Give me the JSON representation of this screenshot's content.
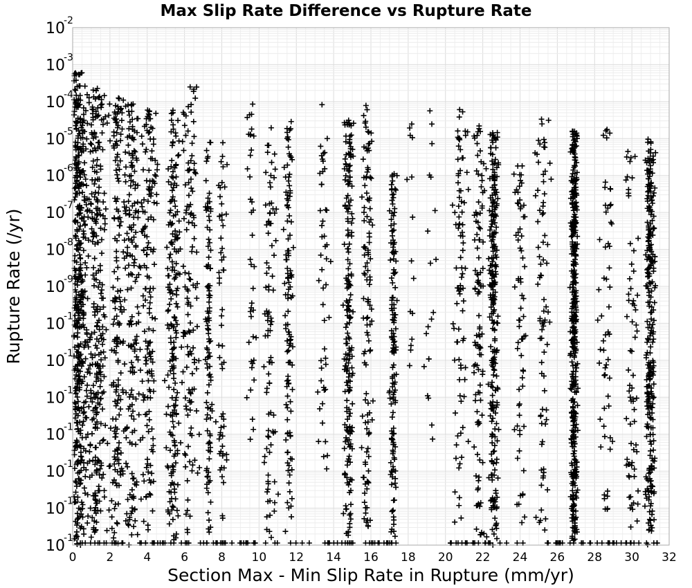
{
  "chart_data": {
    "type": "scatter",
    "title": "Max Slip Rate Difference vs Rupture Rate",
    "xlabel": "Section Max - Min Slip Rate in Rupture (mm/yr)",
    "ylabel": "Rupture Rate (/yr)",
    "xlim": [
      0,
      32
    ],
    "ylim": [
      1e-16,
      0.01
    ],
    "yscale": "log",
    "grid": true,
    "marker": "+",
    "marker_color": "#000000",
    "x_ticks": [
      "0",
      "2",
      "4",
      "6",
      "8",
      "10",
      "12",
      "14",
      "16",
      "18",
      "20",
      "22",
      "24",
      "26",
      "28",
      "30",
      "32"
    ],
    "y_ticks": [
      {
        "base": "10",
        "exp": "-16"
      },
      {
        "base": "10",
        "exp": "-15"
      },
      {
        "base": "10",
        "exp": "-14"
      },
      {
        "base": "10",
        "exp": "-13"
      },
      {
        "base": "10",
        "exp": "-12"
      },
      {
        "base": "10",
        "exp": "-11"
      },
      {
        "base": "10",
        "exp": "-10"
      },
      {
        "base": "10",
        "exp": "-9"
      },
      {
        "base": "10",
        "exp": "-8"
      },
      {
        "base": "10",
        "exp": "-7"
      },
      {
        "base": "10",
        "exp": "-6"
      },
      {
        "base": "10",
        "exp": "-5"
      },
      {
        "base": "10",
        "exp": "-4"
      },
      {
        "base": "10",
        "exp": "-3"
      },
      {
        "base": "10",
        "exp": "-2"
      }
    ],
    "clusters": [
      {
        "x": 0.3,
        "spread": 0.4,
        "y_min": -16,
        "y_max": -3.2,
        "count": 520
      },
      {
        "x": 1.3,
        "spread": 0.45,
        "y_min": -16,
        "y_max": -3.6,
        "count": 300
      },
      {
        "x": 2.4,
        "spread": 0.35,
        "y_min": -16,
        "y_max": -3.8,
        "count": 180
      },
      {
        "x": 3.2,
        "spread": 0.35,
        "y_min": -16,
        "y_max": -4.0,
        "count": 180
      },
      {
        "x": 4.1,
        "spread": 0.35,
        "y_min": -16,
        "y_max": -4.2,
        "count": 160
      },
      {
        "x": 5.4,
        "spread": 0.3,
        "y_min": -16,
        "y_max": -4.2,
        "count": 200
      },
      {
        "x": 6.3,
        "spread": 0.35,
        "y_min": -16,
        "y_max": -3.6,
        "count": 130
      },
      {
        "x": 7.3,
        "spread": 0.15,
        "y_min": -16,
        "y_max": -4.8,
        "count": 110
      },
      {
        "x": 8.0,
        "spread": 0.2,
        "y_min": -15.8,
        "y_max": -5.0,
        "count": 60
      },
      {
        "x": 9.6,
        "spread": 0.2,
        "y_min": -13.6,
        "y_max": -4.0,
        "count": 40
      },
      {
        "x": 10.6,
        "spread": 0.25,
        "y_min": -15.8,
        "y_max": -4.6,
        "count": 90
      },
      {
        "x": 11.6,
        "spread": 0.2,
        "y_min": -16,
        "y_max": -4.4,
        "count": 120
      },
      {
        "x": 13.4,
        "spread": 0.25,
        "y_min": -14.0,
        "y_max": -4.0,
        "count": 50
      },
      {
        "x": 14.8,
        "spread": 0.2,
        "y_min": -16,
        "y_max": -4.4,
        "count": 200
      },
      {
        "x": 15.8,
        "spread": 0.25,
        "y_min": -15.8,
        "y_max": -3.8,
        "count": 120
      },
      {
        "x": 17.2,
        "spread": 0.15,
        "y_min": -16,
        "y_max": -5.8,
        "count": 150
      },
      {
        "x": 18.2,
        "spread": 0.2,
        "y_min": -13.0,
        "y_max": -3.8,
        "count": 15
      },
      {
        "x": 19.2,
        "spread": 0.25,
        "y_min": -13.8,
        "y_max": -4.2,
        "count": 20
      },
      {
        "x": 20.8,
        "spread": 0.3,
        "y_min": -15.4,
        "y_max": -4.2,
        "count": 90
      },
      {
        "x": 21.8,
        "spread": 0.25,
        "y_min": -15.8,
        "y_max": -4.4,
        "count": 110
      },
      {
        "x": 22.6,
        "spread": 0.2,
        "y_min": -16,
        "y_max": -4.8,
        "count": 260
      },
      {
        "x": 24.0,
        "spread": 0.25,
        "y_min": -15.6,
        "y_max": -5.0,
        "count": 70
      },
      {
        "x": 25.2,
        "spread": 0.3,
        "y_min": -15.6,
        "y_max": -4.4,
        "count": 80
      },
      {
        "x": 26.9,
        "spread": 0.15,
        "y_min": -16,
        "y_max": -4.8,
        "count": 420
      },
      {
        "x": 28.6,
        "spread": 0.3,
        "y_min": -15.2,
        "y_max": -4.6,
        "count": 60
      },
      {
        "x": 30.0,
        "spread": 0.3,
        "y_min": -15.6,
        "y_max": -5.2,
        "count": 70
      },
      {
        "x": 31.0,
        "spread": 0.2,
        "y_min": -16,
        "y_max": -5.0,
        "count": 300
      }
    ],
    "floor_points": {
      "y": 1e-16,
      "x_ranges": [
        [
          0,
          17.5
        ],
        [
          20.2,
          24.2
        ],
        [
          25.0,
          31.5
        ]
      ],
      "count": 160
    }
  }
}
